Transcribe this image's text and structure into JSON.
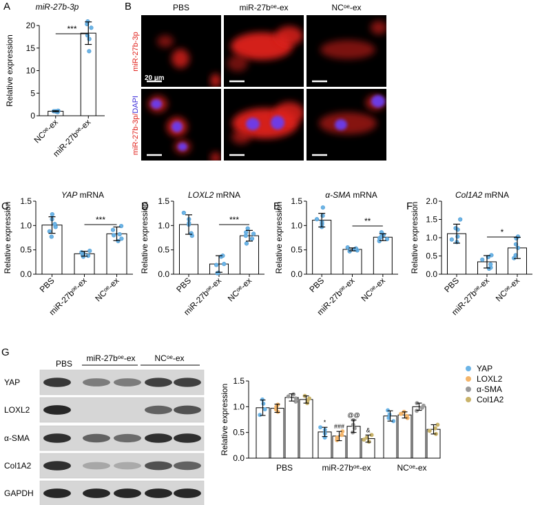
{
  "panels": {
    "A": {
      "letter": "A",
      "title": "miR-27b-3p",
      "ylabel": "Relative expression",
      "ylim": [
        0,
        20
      ],
      "ticks": [
        "0",
        "5",
        "10",
        "15",
        "20"
      ],
      "sig": "***",
      "categories": [
        "NCᵒᵉ-ex",
        "miR-27bᵒᵉ-ex"
      ],
      "values": [
        1.0,
        18.3
      ],
      "errors": [
        0.1,
        2.5
      ],
      "points": [
        [
          0.8,
          0.9,
          1.0,
          1.0,
          1.1,
          1.1
        ],
        [
          14.3,
          17.0,
          17.8,
          19.5,
          20.3,
          20.9
        ]
      ]
    },
    "B": {
      "letter": "B",
      "col_labels": [
        "PBS",
        "miR-27bᵒᵉ-ex",
        "NCᵒᵉ-ex"
      ],
      "row_label_1": "miR-27b-3p",
      "row_label_2a": "miR-27b-3p/",
      "row_label_2b": "DAPI",
      "scale_bar": "20 µm",
      "colors": {
        "red": "#e0201a",
        "blue": "#3b2bd8",
        "background": "#000000"
      }
    },
    "C": {
      "letter": "C",
      "gene": "YAP",
      "suffix": " mRNA",
      "ylabel": "Relative expression",
      "ylim": [
        0,
        1.5
      ],
      "ticks": [
        "0.0",
        "0.5",
        "1.0",
        "1.5"
      ],
      "sig": "***",
      "categories": [
        "PBS",
        "miR-27bᵒᵉ-ex",
        "NCᵒᵉ-ex"
      ],
      "values": [
        1.01,
        0.42,
        0.83
      ],
      "errors": [
        0.17,
        0.05,
        0.14
      ],
      "points": [
        [
          0.77,
          0.88,
          0.97,
          1.03,
          1.13,
          1.23
        ],
        [
          0.36,
          0.38,
          0.4,
          0.42,
          0.45,
          0.48
        ],
        [
          0.68,
          0.73,
          0.8,
          0.82,
          0.91,
          0.99
        ]
      ]
    },
    "D": {
      "letter": "D",
      "gene": "LOXL2",
      "suffix": " mRNA",
      "ylabel": "Relative expression",
      "ylim": [
        0,
        1.5
      ],
      "ticks": [
        "0.0",
        "0.5",
        "1.0",
        "1.5"
      ],
      "sig": "***",
      "categories": [
        "PBS",
        "miR-27bᵒᵉ-ex",
        "NCᵒᵉ-ex"
      ],
      "values": [
        1.02,
        0.21,
        0.79
      ],
      "errors": [
        0.2,
        0.17,
        0.11
      ],
      "points": [
        [
          0.79,
          0.84,
          1.02,
          1.05,
          1.13,
          1.26
        ],
        [
          0.02,
          0.03,
          0.19,
          0.21,
          0.36,
          0.38
        ],
        [
          0.63,
          0.73,
          0.79,
          0.83,
          0.86,
          0.94
        ]
      ]
    },
    "E": {
      "letter": "E",
      "gene": "α-SMA",
      "suffix": " mRNA",
      "ylabel": "Relative expression",
      "ylim": [
        0,
        1.5
      ],
      "ticks": [
        "0.0",
        "0.5",
        "1.0",
        "1.5"
      ],
      "sig": "**",
      "categories": [
        "PBS",
        "miR-27bᵒᵉ-ex",
        "NCᵒᵉ-ex"
      ],
      "values": [
        1.11,
        0.51,
        0.76
      ],
      "errors": [
        0.14,
        0.03,
        0.07
      ],
      "points": [
        [
          0.97,
          1.03,
          1.07,
          1.13,
          1.2,
          1.37
        ],
        [
          0.47,
          0.49,
          0.51,
          0.52,
          0.53,
          0.55
        ],
        [
          0.68,
          0.72,
          0.74,
          0.77,
          0.81,
          0.86
        ]
      ]
    },
    "F": {
      "letter": "F",
      "gene": "Col1A2",
      "suffix": " mRNA",
      "ylabel": "Relative expression",
      "ylim": [
        0,
        2.0
      ],
      "ticks": [
        "0.0",
        "0.5",
        "1.0",
        "1.5",
        "2.0"
      ],
      "sig": "*",
      "categories": [
        "PBS",
        "miR-27bᵒᵉ-ex",
        "NCᵒᵉ-ex"
      ],
      "values": [
        1.11,
        0.34,
        0.72
      ],
      "errors": [
        0.26,
        0.17,
        0.29
      ],
      "points": [
        [
          0.88,
          0.95,
          1.03,
          1.22,
          1.26,
          1.5
        ],
        [
          0.15,
          0.18,
          0.27,
          0.4,
          0.47,
          0.52
        ],
        [
          0.44,
          0.52,
          0.72,
          0.82,
          0.98,
          1.03
        ]
      ]
    }
  },
  "western_blot": {
    "letter": "G",
    "group_labels": [
      "PBS",
      "miR-27bᵒᵉ-ex",
      "NCᵒᵉ-ex"
    ],
    "proteins": [
      "YAP",
      "LOXL2",
      "α-SMA",
      "Col1A2",
      "GAPDH"
    ]
  },
  "chart_data": [
    {
      "type": "bar",
      "panel": "A",
      "title": "miR-27b-3p",
      "ylabel": "Relative expression",
      "categories": [
        "NCᵒᵉ-ex",
        "miR-27bᵒᵉ-ex"
      ],
      "values": [
        1.0,
        18.3
      ],
      "ylim": [
        0,
        20
      ]
    },
    {
      "type": "bar",
      "panel": "C",
      "title": "YAP mRNA",
      "ylabel": "Relative expression",
      "categories": [
        "PBS",
        "miR-27bᵒᵉ-ex",
        "NCᵒᵉ-ex"
      ],
      "values": [
        1.01,
        0.42,
        0.83
      ],
      "ylim": [
        0,
        1.5
      ]
    },
    {
      "type": "bar",
      "panel": "D",
      "title": "LOXL2 mRNA",
      "ylabel": "Relative expression",
      "categories": [
        "PBS",
        "miR-27bᵒᵉ-ex",
        "NCᵒᵉ-ex"
      ],
      "values": [
        1.02,
        0.21,
        0.79
      ],
      "ylim": [
        0,
        1.5
      ]
    },
    {
      "type": "bar",
      "panel": "E",
      "title": "α-SMA mRNA",
      "ylabel": "Relative expression",
      "categories": [
        "PBS",
        "miR-27bᵒᵉ-ex",
        "NCᵒᵉ-ex"
      ],
      "values": [
        1.11,
        0.51,
        0.76
      ],
      "ylim": [
        0,
        1.5
      ]
    },
    {
      "type": "bar",
      "panel": "F",
      "title": "Col1A2 mRNA",
      "ylabel": "Relative expression",
      "categories": [
        "PBS",
        "miR-27bᵒᵉ-ex",
        "NCᵒᵉ-ex"
      ],
      "values": [
        1.11,
        0.34,
        0.72
      ],
      "ylim": [
        0,
        2.0
      ]
    },
    {
      "type": "bar",
      "panel": "G",
      "ylabel": "Relative expression",
      "ylim": [
        0,
        1.5
      ],
      "ticks": [
        "0.0",
        "0.5",
        "1.0",
        "1.5"
      ],
      "categories": [
        "PBS",
        "miR-27bᵒᵉ-ex",
        "NCᵒᵉ-ex"
      ],
      "legend_position": "top-right",
      "series": [
        {
          "name": "YAP",
          "color": "#6cb4e6",
          "values": [
            0.98,
            0.51,
            0.82
          ],
          "errors": [
            0.15,
            0.09,
            0.1
          ],
          "annotations": [
            "",
            "*",
            ""
          ],
          "points": [
            [
              0.84,
              0.95,
              1.06,
              1.14
            ],
            [
              0.4,
              0.48,
              0.55,
              0.6
            ],
            [
              0.72,
              0.78,
              0.85,
              0.93
            ]
          ]
        },
        {
          "name": "LOXL2",
          "color": "#f4b56a",
          "values": [
            0.97,
            0.43,
            0.84
          ],
          "errors": [
            0.08,
            0.09,
            0.06
          ],
          "annotations": [
            "",
            "###",
            ""
          ],
          "points": [
            [
              0.9,
              0.95,
              1.0,
              1.04
            ],
            [
              0.35,
              0.4,
              0.45,
              0.52
            ],
            [
              0.78,
              0.82,
              0.86,
              0.9
            ]
          ]
        },
        {
          "name": "α-SMA",
          "color": "#9a9a9a",
          "values": [
            1.18,
            0.62,
            1.0
          ],
          "errors": [
            0.07,
            0.12,
            0.07
          ],
          "annotations": [
            "",
            "@@",
            ""
          ],
          "points": [
            [
              1.1,
              1.16,
              1.2,
              1.24
            ],
            [
              0.5,
              0.58,
              0.65,
              0.74
            ],
            [
              0.92,
              0.98,
              1.02,
              1.07
            ]
          ]
        },
        {
          "name": "Col1A2",
          "color": "#c9b36a",
          "values": [
            1.14,
            0.38,
            0.56
          ],
          "errors": [
            0.07,
            0.07,
            0.09
          ],
          "annotations": [
            "",
            "&",
            ""
          ],
          "points": [
            [
              1.07,
              1.12,
              1.16,
              1.21
            ],
            [
              0.32,
              0.36,
              0.4,
              0.45
            ],
            [
              0.47,
              0.53,
              0.58,
              0.65
            ]
          ]
        }
      ]
    }
  ]
}
